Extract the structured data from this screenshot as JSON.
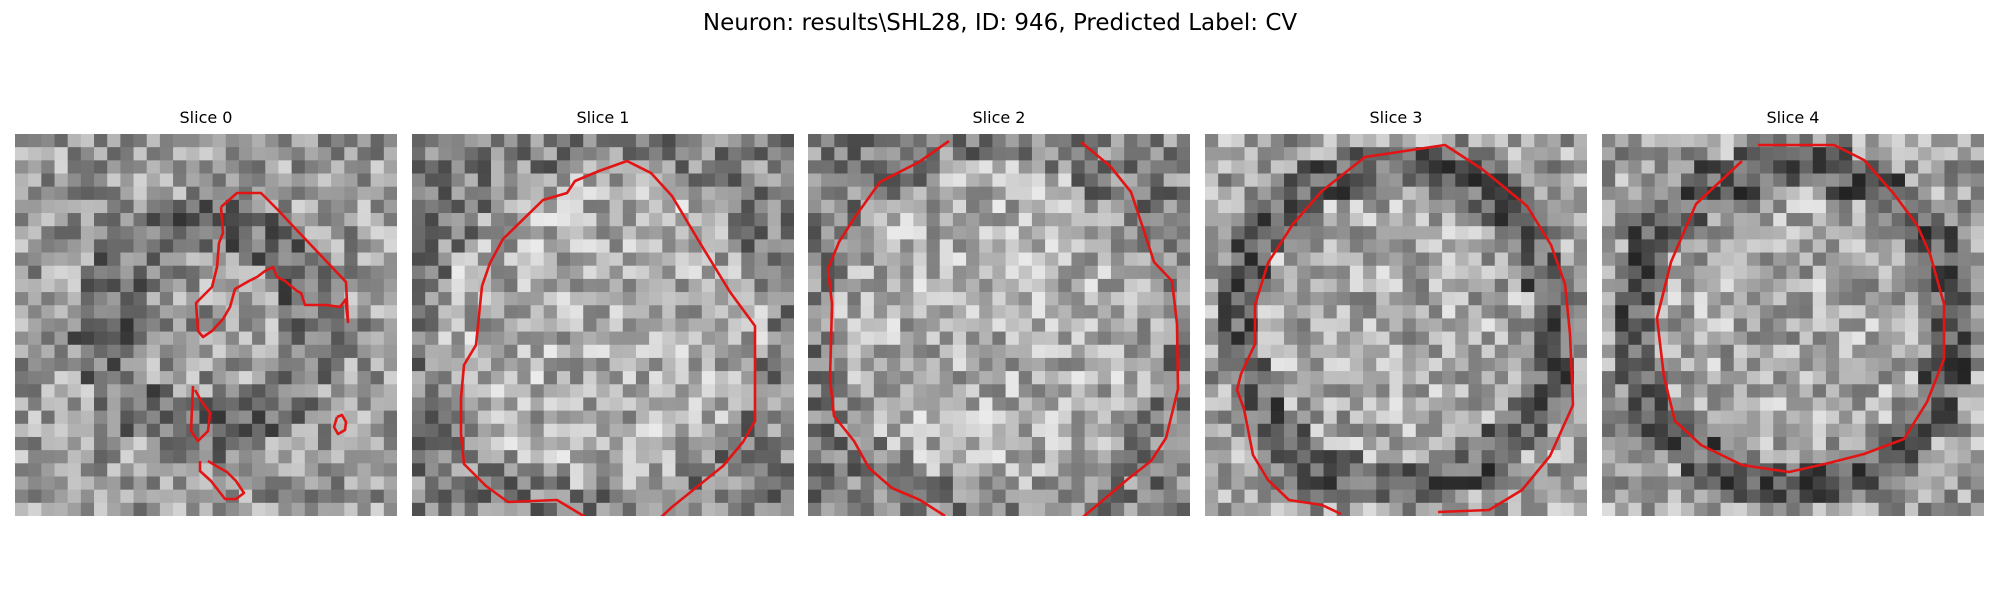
{
  "figure": {
    "title": "Neuron: results\\SHL28, ID: 946, Predicted Label: CV",
    "contour_color": "#e21414"
  },
  "slices": [
    {
      "title": "Slice 0",
      "seed": 11,
      "pattern": "irregular"
    },
    {
      "title": "Slice 1",
      "seed": 23,
      "pattern": "bright-disc"
    },
    {
      "title": "Slice 2",
      "seed": 37,
      "pattern": "bright-disc"
    },
    {
      "title": "Slice 3",
      "seed": 41,
      "pattern": "dark-ring"
    },
    {
      "title": "Slice 4",
      "seed": 59,
      "pattern": "dark-ring"
    }
  ]
}
